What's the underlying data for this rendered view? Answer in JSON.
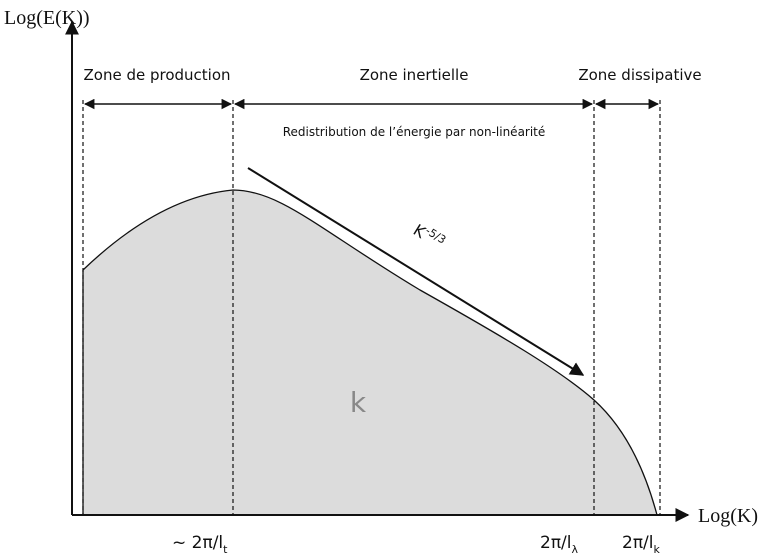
{
  "axes": {
    "y_label": "Log(E(K))",
    "x_label": "Log(K)"
  },
  "zones": [
    "Zone de production",
    "Zone inertielle",
    "Zone dissipative"
  ],
  "annotation": "Redistribution de l’énergie par non-linéarité",
  "slope": {
    "base": "K",
    "exponent": "-5/3"
  },
  "area_label": "k",
  "markers": [
    {
      "text": "~ 2π/l",
      "sub": "t"
    },
    {
      "text": "2π/l",
      "sub": "λ"
    },
    {
      "text": "2π/l",
      "sub": "k"
    }
  ]
}
